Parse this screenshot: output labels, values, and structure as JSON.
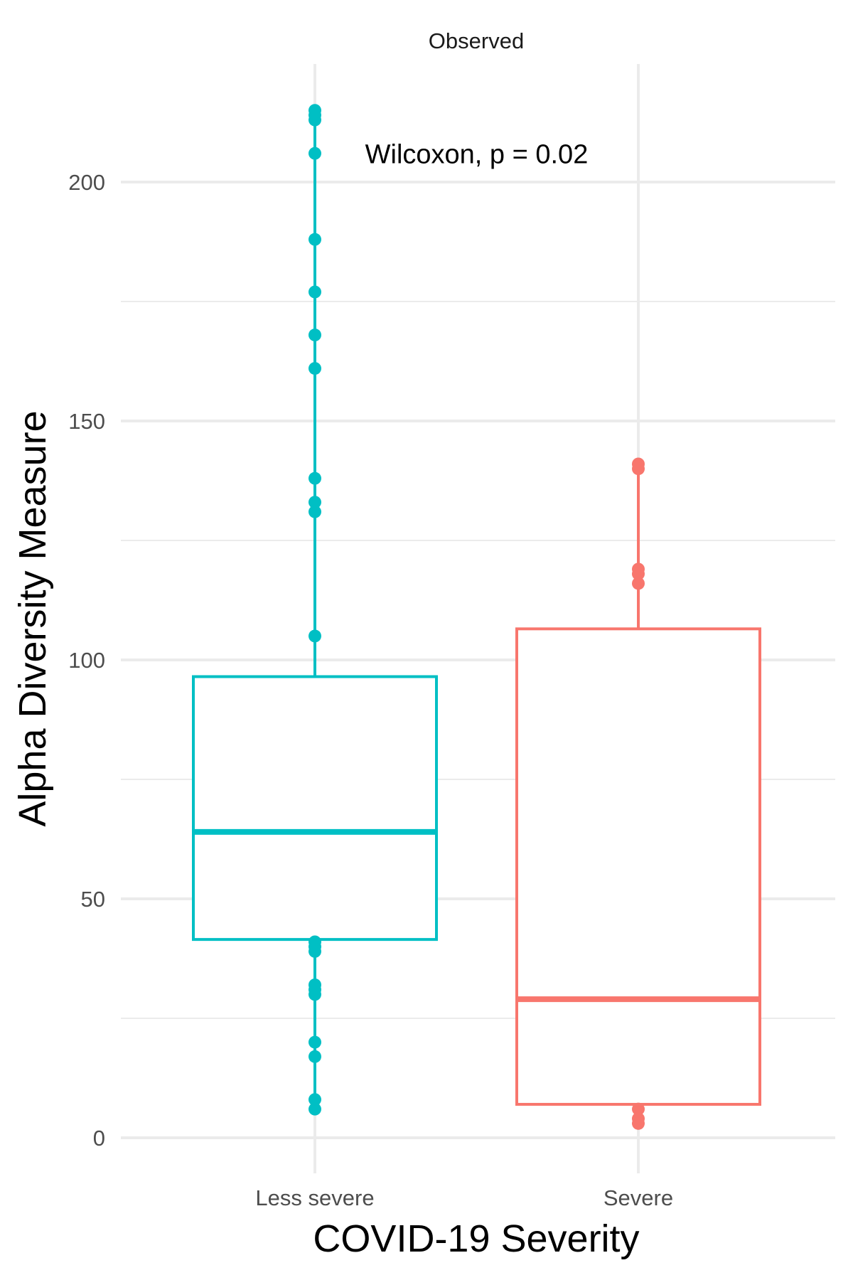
{
  "chart_data": {
    "type": "box",
    "facet_title": "Observed",
    "xlabel": "COVID-19 Severity",
    "ylabel": "Alpha Diversity Measure",
    "categories": [
      "Less severe",
      "Severe"
    ],
    "ylim": [
      -7,
      223
    ],
    "yticks": [
      0,
      50,
      100,
      150,
      200
    ],
    "ytick_labels": [
      "0",
      "50",
      "100",
      "150",
      "200"
    ],
    "minor_yticks": [
      25,
      75,
      125,
      175
    ],
    "grid": true,
    "legend": "none",
    "annotation": {
      "text": "Wilcoxon, p = 0.02",
      "x_between": [
        1,
        2
      ],
      "y": 206
    },
    "series": [
      {
        "category": "Less severe",
        "color": "#00BFC4",
        "q1": 41.5,
        "median": 64,
        "q3": 96.5,
        "whisker_low": 41.5,
        "whisker_high": 96.5,
        "points": [
          215,
          214,
          213,
          206,
          188,
          177,
          168,
          161,
          138,
          133,
          131,
          105,
          41,
          40,
          39,
          32,
          31,
          30,
          20,
          17,
          8,
          6
        ]
      },
      {
        "category": "Severe",
        "color": "#F8766D",
        "q1": 7,
        "median": 29,
        "q3": 106.5,
        "whisker_low": 7,
        "whisker_high": 106.5,
        "points": [
          141,
          140,
          119,
          118,
          116,
          6,
          4,
          3
        ]
      }
    ]
  }
}
